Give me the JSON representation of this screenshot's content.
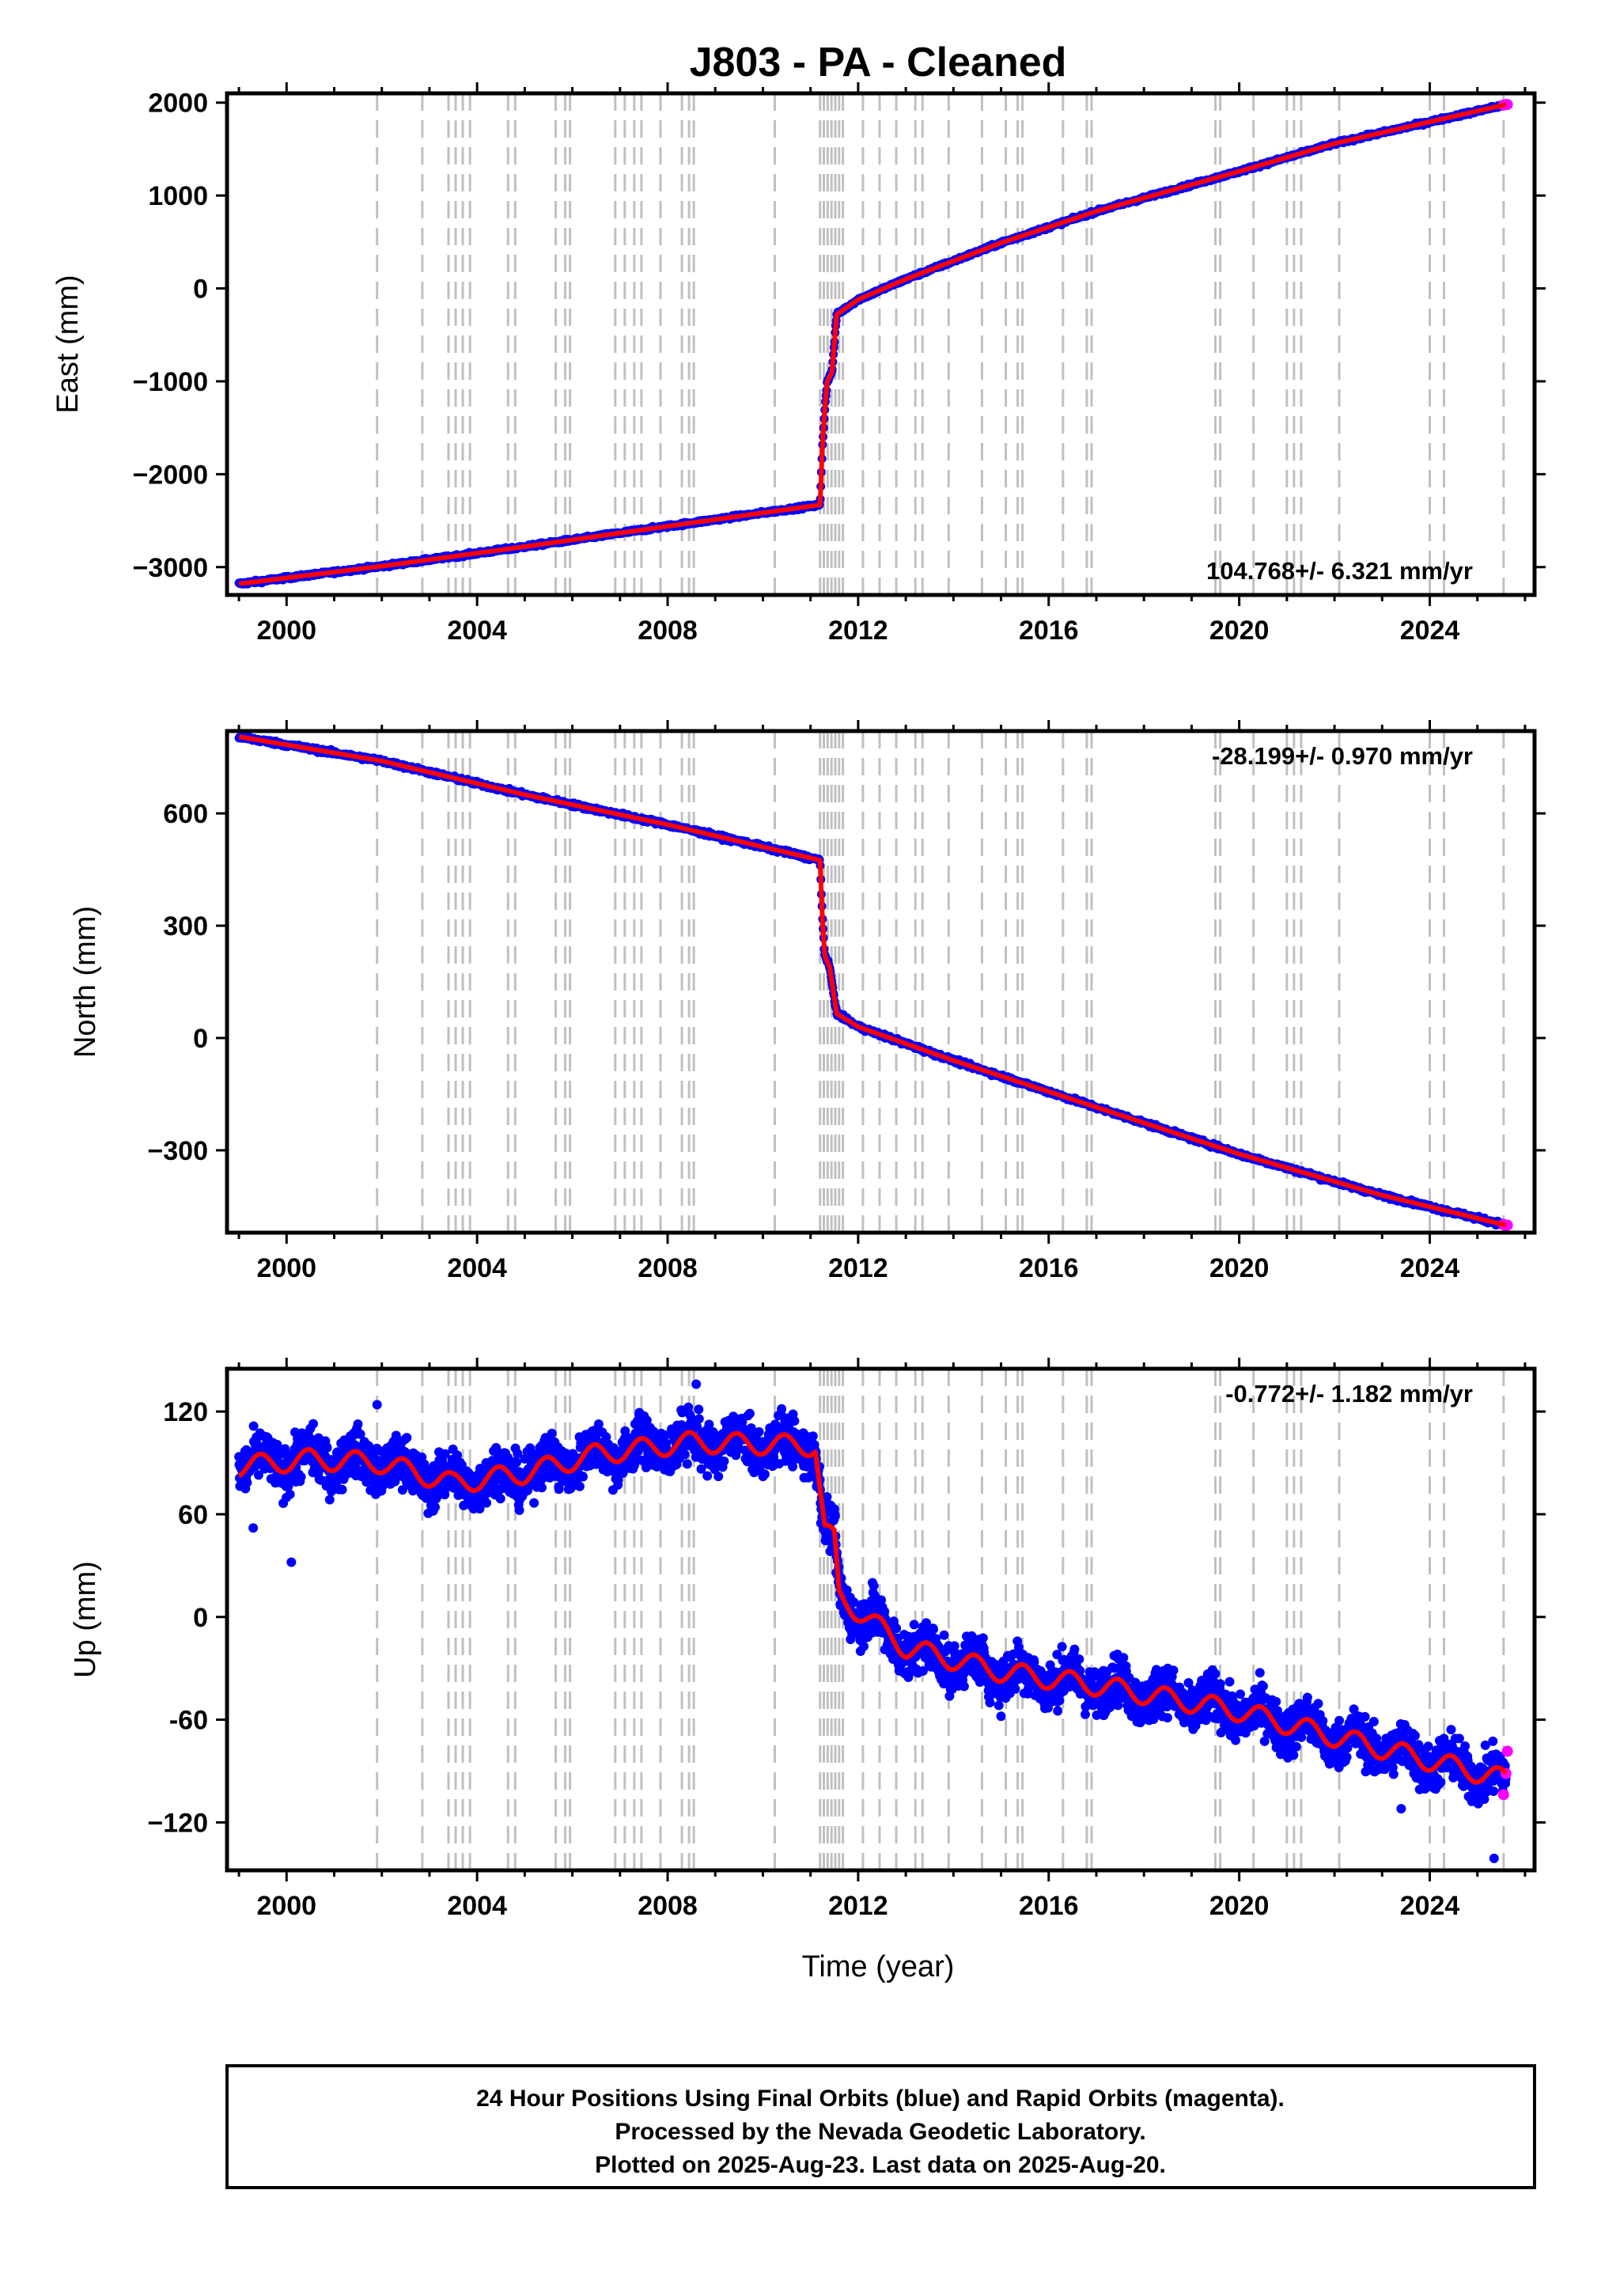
{
  "title": "J803  - PA - Cleaned",
  "colors": {
    "final_orbits": "#0000ff",
    "rapid_orbits": "#ff00ff",
    "model": "#ff0000",
    "event_lines": "#c0c0c0",
    "frame": "#000000"
  },
  "chart_data": [
    {
      "type": "scatter",
      "component": "east",
      "ylabel": "East (mm)",
      "xlim": [
        1998.75,
        2026.2
      ],
      "ylim": [
        -3300,
        2100
      ],
      "yticks": [
        -3000,
        -2000,
        -1000,
        0,
        1000,
        2000
      ],
      "ytick_labels": [
        "−3000",
        "−2000",
        "−1000",
        "0",
        "1000",
        "2000"
      ],
      "xticks": [
        2000,
        2004,
        2008,
        2012,
        2016,
        2020,
        2024
      ],
      "rate_text": "104.768+/- 6.321 mm/yr",
      "rate_position": "bottom-right",
      "series_points": [
        [
          1999.0,
          -3180
        ],
        [
          2002.0,
          -2990
        ],
        [
          2005.0,
          -2780
        ],
        [
          2008.0,
          -2560
        ],
        [
          2011.2,
          -2330
        ],
        [
          2011.25,
          -1700
        ],
        [
          2011.3,
          -1300
        ],
        [
          2011.35,
          -1000
        ],
        [
          2011.45,
          -900
        ],
        [
          2011.55,
          -280
        ],
        [
          2012.0,
          -120
        ],
        [
          2013.0,
          100
        ],
        [
          2015.0,
          490
        ],
        [
          2017.0,
          830
        ],
        [
          2020.0,
          1260
        ],
        [
          2022.0,
          1560
        ],
        [
          2025.6,
          1980
        ]
      ],
      "steps": [
        [
          2001.9,
          40
        ],
        [
          2011.2,
          500
        ],
        [
          2011.45,
          700
        ]
      ],
      "noise_mm": 12,
      "seasonal_mm": 0
    },
    {
      "type": "scatter",
      "component": "north",
      "ylabel": "North (mm)",
      "xlim": [
        1998.75,
        2026.2
      ],
      "ylim": [
        -520,
        820
      ],
      "yticks": [
        -300,
        0,
        300,
        600
      ],
      "ytick_labels": [
        "−300",
        "0",
        "300",
        "600"
      ],
      "xticks": [
        2000,
        2004,
        2008,
        2012,
        2016,
        2020,
        2024
      ],
      "rate_text": "-28.199+/- 0.970 mm/yr",
      "rate_position": "top-right",
      "series_points": [
        [
          1999.0,
          805
        ],
        [
          2002.0,
          740
        ],
        [
          2005.0,
          650
        ],
        [
          2008.0,
          570
        ],
        [
          2011.2,
          475
        ],
        [
          2011.25,
          320
        ],
        [
          2011.3,
          220
        ],
        [
          2011.4,
          190
        ],
        [
          2011.55,
          65
        ],
        [
          2012.0,
          30
        ],
        [
          2014.0,
          -60
        ],
        [
          2017.0,
          -185
        ],
        [
          2020.0,
          -310
        ],
        [
          2023.0,
          -420
        ],
        [
          2025.6,
          -500
        ]
      ],
      "steps": [],
      "noise_mm": 4,
      "seasonal_mm": 0
    },
    {
      "type": "scatter",
      "component": "up",
      "ylabel": "Up (mm)",
      "xlim": [
        1998.75,
        2026.2
      ],
      "ylim": [
        -148,
        145
      ],
      "yticks": [
        -120,
        -60,
        0,
        60,
        120
      ],
      "ytick_labels": [
        "−120",
        "-60",
        "0",
        "60",
        "120"
      ],
      "xticks": [
        2000,
        2004,
        2008,
        2012,
        2016,
        2020,
        2024
      ],
      "xlabel": "Time (year)",
      "rate_text": "-0.772+/- 1.182 mm/yr",
      "rate_position": "top-right",
      "series_points": [
        [
          1999.0,
          88
        ],
        [
          2000.5,
          92
        ],
        [
          2002.0,
          90
        ],
        [
          2003.5,
          78
        ],
        [
          2005.0,
          84
        ],
        [
          2006.5,
          95
        ],
        [
          2008.5,
          102
        ],
        [
          2011.1,
          100
        ],
        [
          2011.2,
          75
        ],
        [
          2011.3,
          50
        ],
        [
          2011.5,
          45
        ],
        [
          2011.6,
          12
        ],
        [
          2013.0,
          -18
        ],
        [
          2015.0,
          -32
        ],
        [
          2017.0,
          -40
        ],
        [
          2020.0,
          -55
        ],
        [
          2022.0,
          -70
        ],
        [
          2025.6,
          -95
        ]
      ],
      "steps": [],
      "noise_mm": 10,
      "seasonal_mm": 6
    }
  ],
  "event_lines_years": [
    2001.9,
    2002.85,
    2003.4,
    2003.55,
    2003.7,
    2003.85,
    2004.65,
    2004.8,
    2005.65,
    2005.85,
    2005.95,
    2006.9,
    2007.1,
    2007.3,
    2007.45,
    2007.85,
    2008.3,
    2008.45,
    2008.55,
    2010.25,
    2011.2,
    2011.28,
    2011.36,
    2011.44,
    2011.52,
    2011.6,
    2011.68,
    2012.1,
    2012.45,
    2012.8,
    2013.2,
    2013.35,
    2013.9,
    2014.6,
    2015.1,
    2015.35,
    2015.45,
    2016.3,
    2016.8,
    2016.9,
    2019.5,
    2019.6,
    2020.3,
    2021.0,
    2021.15,
    2021.3,
    2022.1,
    2024.0,
    2024.3,
    2025.55
  ],
  "rapid_orbit_years": [
    2025.55,
    2025.6,
    2025.63
  ],
  "footer": {
    "line1": "24 Hour Positions Using Final Orbits (blue) and Rapid Orbits (magenta).",
    "line2": "Processed by the Nevada Geodetic Laboratory.",
    "line3": "Plotted on 2025-Aug-23. Last data on 2025-Aug-20."
  }
}
